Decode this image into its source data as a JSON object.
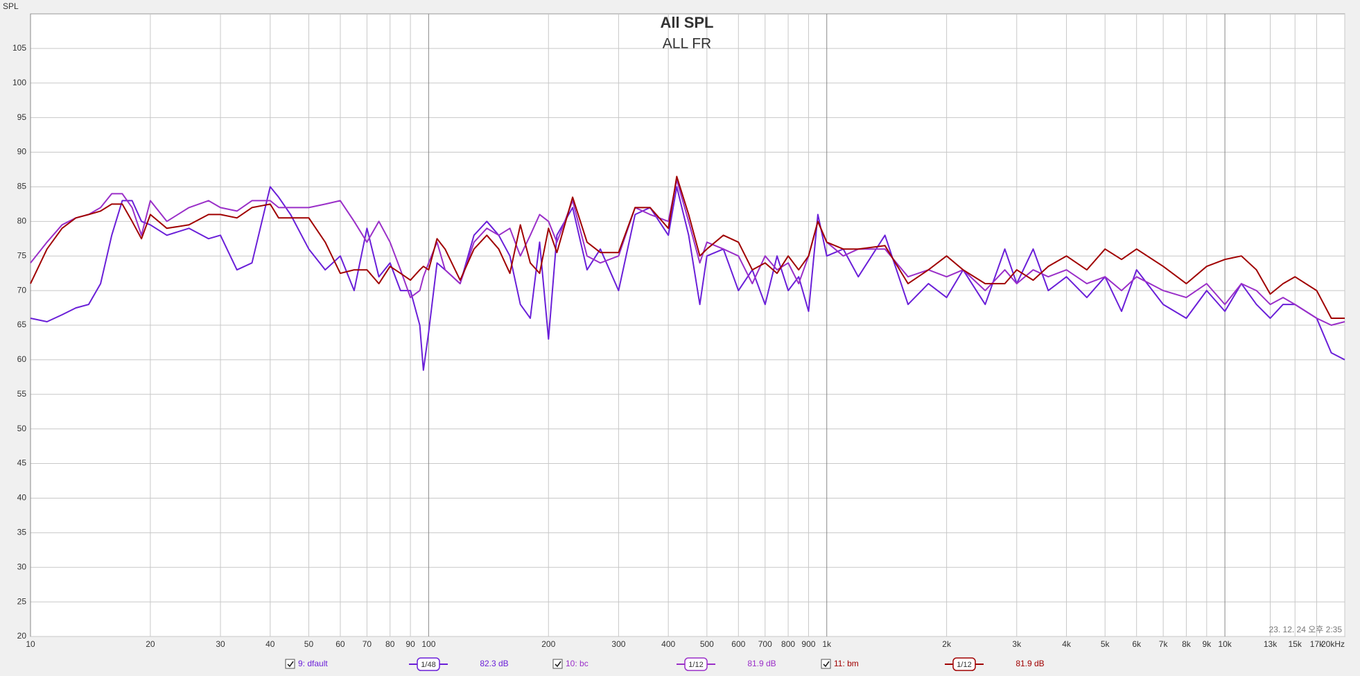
{
  "chart_data": {
    "type": "line",
    "title": "All SPL",
    "subtitle": "ALL FR",
    "y_label": "SPL",
    "timestamp": "23. 12. 24 오후 2:35",
    "log_x": true,
    "grid": true,
    "xlim": [
      10,
      20000
    ],
    "ylim": [
      20,
      110
    ],
    "yticks": [
      20,
      25,
      30,
      35,
      40,
      45,
      50,
      55,
      60,
      65,
      70,
      75,
      80,
      85,
      90,
      95,
      100,
      105
    ],
    "xticks": [
      10,
      20,
      30,
      40,
      50,
      60,
      70,
      80,
      90,
      100,
      200,
      300,
      400,
      500,
      600,
      700,
      800,
      900,
      {
        "value": 1000,
        "label": "1k"
      },
      {
        "value": 2000,
        "label": "2k"
      },
      {
        "value": 3000,
        "label": "3k"
      },
      {
        "value": 4000,
        "label": "4k"
      },
      {
        "value": 5000,
        "label": "5k"
      },
      {
        "value": 6000,
        "label": "6k"
      },
      {
        "value": 7000,
        "label": "7k"
      },
      {
        "value": 8000,
        "label": "8k"
      },
      {
        "value": 9000,
        "label": "9k"
      },
      {
        "value": 10000,
        "label": "10k"
      },
      {
        "value": 13000,
        "label": "13k"
      },
      {
        "value": 15000,
        "label": "15k"
      },
      {
        "value": 17000,
        "label": "17k"
      },
      {
        "value": 20000,
        "label": "20kHz"
      }
    ],
    "x": [
      10,
      11,
      12,
      13,
      14,
      15,
      16,
      17,
      18,
      19,
      20,
      22,
      25,
      28,
      30,
      33,
      36,
      40,
      42,
      45,
      50,
      55,
      60,
      65,
      70,
      75,
      80,
      85,
      90,
      95,
      97,
      100,
      105,
      110,
      120,
      130,
      140,
      150,
      160,
      170,
      180,
      190,
      200,
      210,
      230,
      250,
      270,
      300,
      330,
      360,
      400,
      420,
      450,
      480,
      500,
      550,
      600,
      650,
      700,
      750,
      800,
      850,
      900,
      950,
      1000,
      1100,
      1200,
      1400,
      1600,
      1800,
      2000,
      2200,
      2500,
      2800,
      3000,
      3300,
      3600,
      4000,
      4500,
      5000,
      5500,
      6000,
      7000,
      8000,
      9000,
      10000,
      11000,
      12000,
      13000,
      14000,
      15000,
      17000,
      18500,
      20000
    ],
    "series": [
      {
        "name": "9: dfault",
        "smoothing": "1/48",
        "level": "82.3 dB",
        "color": "#6a1fd8",
        "values": [
          66,
          65.5,
          66.5,
          67.5,
          68,
          71,
          78,
          83,
          83,
          80,
          79.5,
          78,
          79,
          77.5,
          78,
          73,
          74,
          85,
          83.5,
          81,
          76,
          73,
          75,
          70,
          79,
          72,
          74,
          70,
          70,
          65,
          58.5,
          64,
          74,
          73,
          71,
          78,
          80,
          78,
          75,
          68,
          66,
          77,
          63,
          78,
          82,
          73,
          76,
          70,
          81,
          82,
          78,
          85,
          78,
          68,
          75,
          76,
          70,
          73,
          68,
          75,
          70,
          72,
          67,
          81,
          75,
          76,
          72,
          78,
          68,
          71,
          69,
          73,
          68,
          76,
          71,
          76,
          70,
          72,
          69,
          72,
          67,
          73,
          68,
          66,
          70,
          67,
          71,
          68,
          66,
          68,
          68,
          66,
          61,
          60
        ]
      },
      {
        "name": "10: bc",
        "smoothing": "1/12",
        "level": "81.9 dB",
        "color": "#9a2fc8",
        "values": [
          74,
          77,
          79.5,
          80.5,
          81,
          82,
          84,
          84,
          82,
          78,
          83,
          80,
          82,
          83,
          82,
          81.5,
          83,
          83,
          82,
          82,
          82,
          82.5,
          83,
          80,
          77,
          80,
          77,
          73,
          69,
          70,
          72,
          74,
          77,
          73,
          71,
          77,
          79,
          78,
          79,
          75,
          78,
          81,
          80,
          77,
          83,
          75,
          74,
          75,
          82,
          81,
          80,
          86,
          80,
          74,
          77,
          76,
          75,
          71,
          75,
          73,
          74,
          71,
          75,
          80,
          77,
          75,
          76,
          76,
          72,
          73,
          72,
          73,
          70,
          73,
          71,
          73,
          72,
          73,
          71,
          72,
          70,
          72,
          70,
          69,
          71,
          68,
          71,
          70,
          68,
          69,
          68,
          66,
          65,
          65.5
        ]
      },
      {
        "name": "11: bm",
        "smoothing": "1/12",
        "level": "81.9 dB",
        "color": "#a00000",
        "values": [
          71,
          76,
          79,
          80.5,
          81,
          81.5,
          82.5,
          82.5,
          80,
          77.5,
          81,
          79,
          79.5,
          81,
          81,
          80.5,
          82,
          82.5,
          80.5,
          80.5,
          80.5,
          77,
          72.5,
          73,
          73,
          71,
          73.5,
          72.5,
          71.5,
          73,
          73.5,
          73,
          77.5,
          76,
          71.5,
          76,
          78,
          76,
          72.5,
          79.5,
          74,
          72.5,
          79,
          75.5,
          83.5,
          77,
          75.5,
          75.5,
          82,
          82,
          79,
          86.5,
          81,
          75,
          76,
          78,
          77,
          73,
          74,
          72.5,
          75,
          73,
          75,
          80,
          77,
          76,
          76,
          76.5,
          71,
          73,
          75,
          73,
          71,
          71,
          73,
          71.5,
          73.5,
          75,
          73,
          76,
          74.5,
          76,
          73.5,
          71,
          73.5,
          74.5,
          75,
          73,
          69.5,
          71,
          72,
          70,
          66,
          66
        ]
      }
    ]
  }
}
